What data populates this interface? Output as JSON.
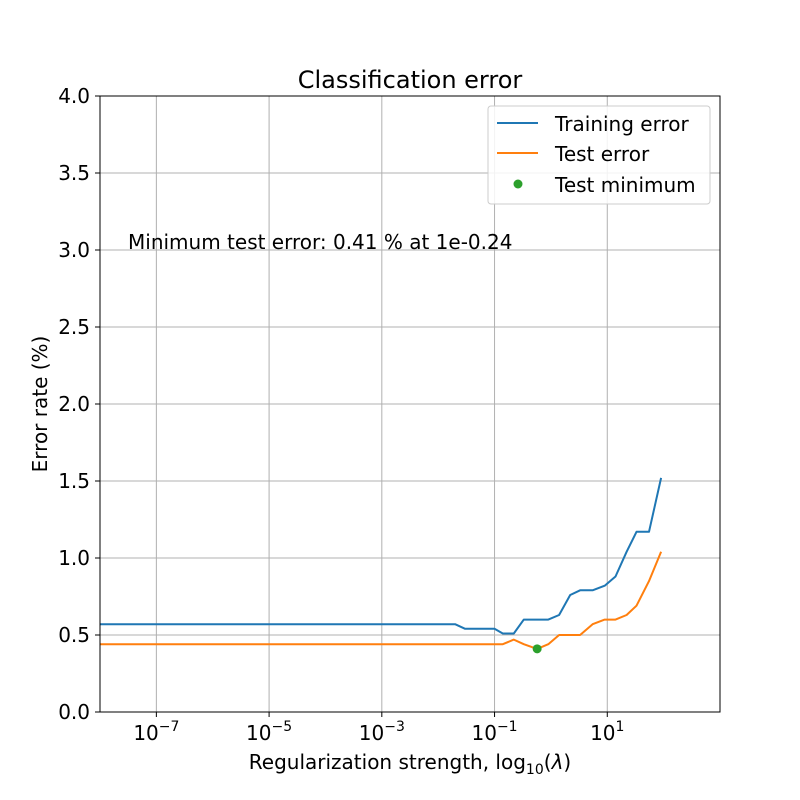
{
  "chart_data": {
    "type": "line",
    "title": "Classification error",
    "xlabel": {
      "prefix": "Regularization strength, log",
      "sub": "10",
      "open": "(",
      "symbol": "λ",
      "close": ")"
    },
    "ylabel": "Error rate (%)",
    "xscale": "log",
    "xlim": [
      1e-08,
      1000
    ],
    "ylim": [
      0,
      4
    ],
    "grid": true,
    "xticks": [
      {
        "value": 1e-07,
        "base": "10",
        "exp": "−7"
      },
      {
        "value": 1e-05,
        "base": "10",
        "exp": "−5"
      },
      {
        "value": 0.001,
        "base": "10",
        "exp": "−3"
      },
      {
        "value": 0.1,
        "base": "10",
        "exp": "−1"
      },
      {
        "value": 10,
        "base": "10",
        "exp": "1"
      }
    ],
    "yticks": [
      {
        "value": 0.0,
        "label": "0.0"
      },
      {
        "value": 0.5,
        "label": "0.5"
      },
      {
        "value": 1.0,
        "label": "1.0"
      },
      {
        "value": 1.5,
        "label": "1.5"
      },
      {
        "value": 2.0,
        "label": "2.0"
      },
      {
        "value": 2.5,
        "label": "2.5"
      },
      {
        "value": 3.0,
        "label": "3.0"
      },
      {
        "value": 3.5,
        "label": "3.5"
      },
      {
        "value": 4.0,
        "label": "4.0"
      }
    ],
    "legend_position": "top-right",
    "series": [
      {
        "name": "Training error",
        "color": "#1f77b4",
        "points": [
          [
            1e-08,
            0.57
          ],
          [
            0.02,
            0.57
          ],
          [
            0.03,
            0.54
          ],
          [
            0.1,
            0.54
          ],
          [
            0.14,
            0.51
          ],
          [
            0.22,
            0.51
          ],
          [
            0.33,
            0.6
          ],
          [
            0.5,
            0.6
          ],
          [
            0.9,
            0.6
          ],
          [
            1.4,
            0.63
          ],
          [
            2.2,
            0.76
          ],
          [
            3.3,
            0.79
          ],
          [
            5.5,
            0.79
          ],
          [
            9,
            0.82
          ],
          [
            14,
            0.88
          ],
          [
            22,
            1.04
          ],
          [
            33,
            1.17
          ],
          [
            55,
            1.17
          ],
          [
            90,
            1.52
          ]
        ]
      },
      {
        "name": "Test error",
        "color": "#ff7f0e",
        "points": [
          [
            1e-08,
            0.44
          ],
          [
            0.14,
            0.44
          ],
          [
            0.22,
            0.47
          ],
          [
            0.33,
            0.44
          ],
          [
            0.57,
            0.41
          ],
          [
            0.9,
            0.44
          ],
          [
            1.4,
            0.5
          ],
          [
            2.2,
            0.5
          ],
          [
            3.3,
            0.5
          ],
          [
            5.5,
            0.57
          ],
          [
            9,
            0.6
          ],
          [
            14,
            0.6
          ],
          [
            22,
            0.63
          ],
          [
            33,
            0.69
          ],
          [
            55,
            0.85
          ],
          [
            90,
            1.04
          ]
        ]
      }
    ],
    "markers": [
      {
        "name": "Test minimum",
        "color": "#2ca02c",
        "x": 0.57,
        "y": 0.41
      }
    ],
    "annotation": "Minimum test error: 0.41 % at 1e-0.24"
  }
}
